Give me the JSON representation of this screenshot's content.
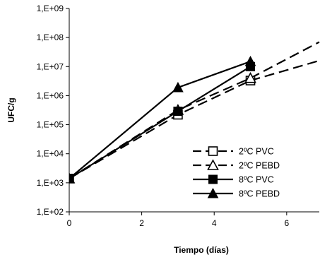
{
  "chart_data": {
    "type": "line",
    "title": "",
    "xlabel": "Tiempo (días)",
    "ylabel": "UFC/g",
    "xlim": [
      0,
      6.9
    ],
    "ylim": [
      100,
      1000000000
    ],
    "yscale": "log",
    "x_ticks": [
      0,
      2,
      4,
      6
    ],
    "x_tick_labels": [
      "0",
      "2",
      "4",
      "6"
    ],
    "y_ticks": [
      100,
      1000,
      10000,
      100000,
      1000000,
      10000000,
      100000000,
      1000000000
    ],
    "y_tick_labels": [
      "1,E+02",
      "1,E+03",
      "1,E+04",
      "1,E+05",
      "1,E+06",
      "1,E+07",
      "1,E+08",
      "1,E+09"
    ],
    "grid": false,
    "legend_position": "right",
    "series": [
      {
        "name": "2ºC PVC",
        "line_style": "dashed",
        "marker": "open-square",
        "color": "#000000",
        "x": [
          0,
          3,
          5
        ],
        "y": [
          1400,
          220000,
          3300000
        ],
        "trend_to": {
          "x": 6.9,
          "y": 16000000
        }
      },
      {
        "name": "2ºC PEBD",
        "line_style": "dashed",
        "marker": "open-triangle",
        "color": "#000000",
        "x": [
          0,
          3,
          5
        ],
        "y": [
          1400,
          320000,
          4000000
        ],
        "trend_to": {
          "x": 6.9,
          "y": 70000000
        }
      },
      {
        "name": "8ºC PVC",
        "line_style": "solid",
        "marker": "filled-square",
        "color": "#000000",
        "x": [
          0,
          3,
          5
        ],
        "y": [
          1400,
          290000,
          10000000
        ]
      },
      {
        "name": "8ºC PEBD",
        "line_style": "solid",
        "marker": "filled-triangle",
        "color": "#000000",
        "x": [
          0,
          3,
          5
        ],
        "y": [
          1400,
          1900000,
          15000000
        ]
      }
    ]
  }
}
